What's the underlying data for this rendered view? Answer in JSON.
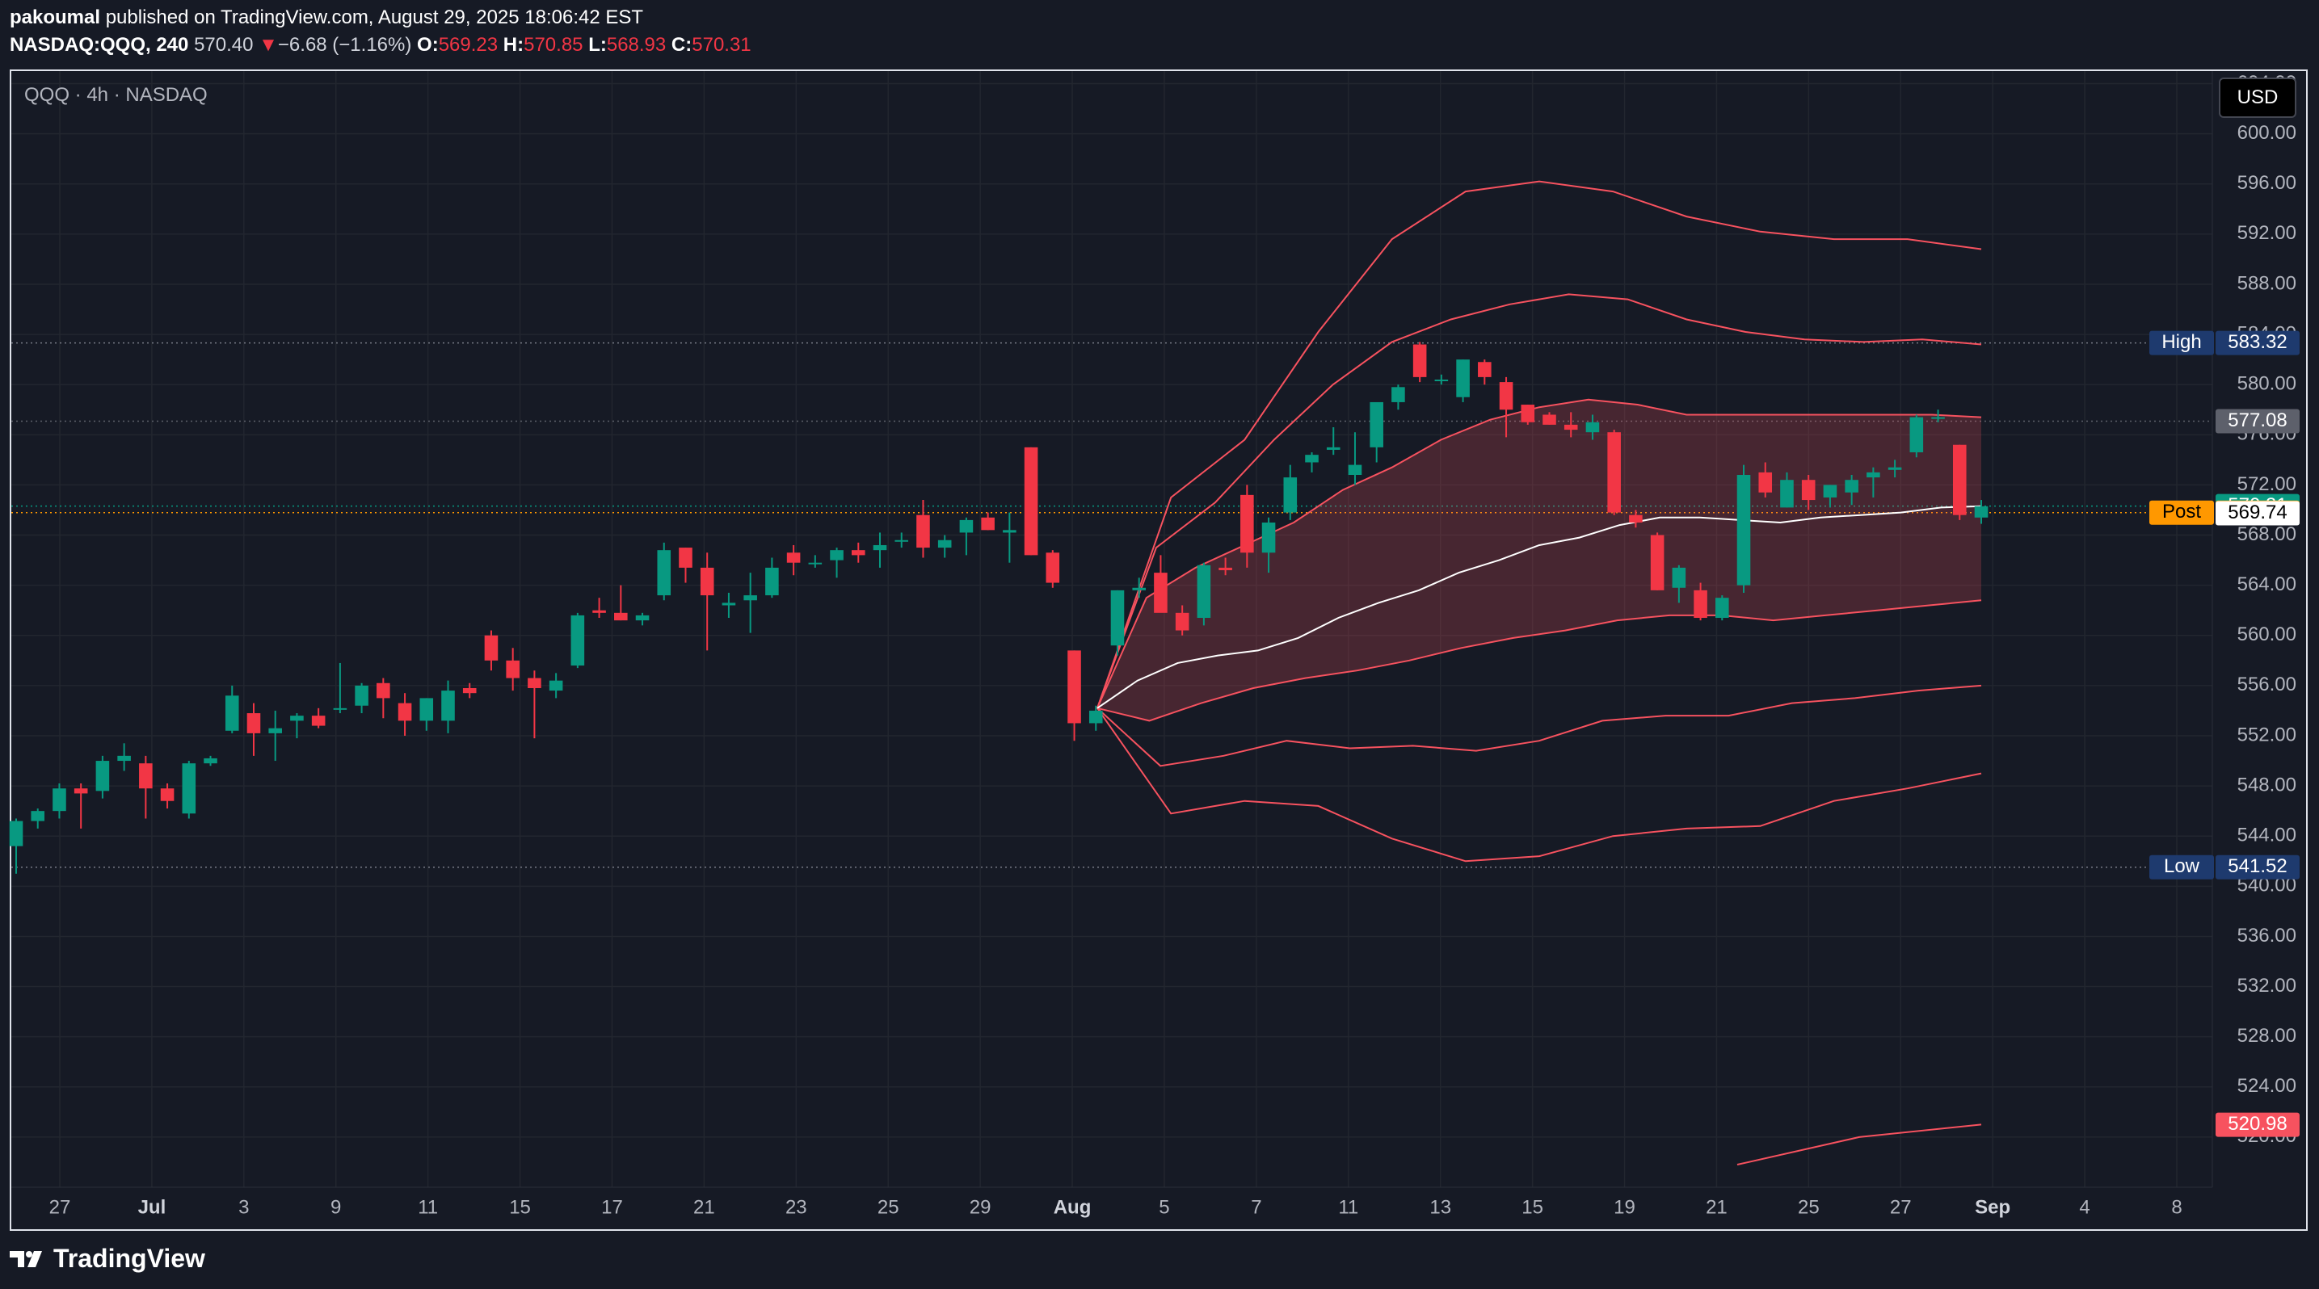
{
  "header": {
    "publisher": "pakoumal",
    "published_text": "published on TradingView.com, August 29, 2025 18:06:42 EST",
    "symbol_line": "NASDAQ:QQQ, 240",
    "last": "570.40",
    "change_arrow": "▼",
    "change": "−6.68 (−1.16%)",
    "o_label": "O:",
    "o": "569.23",
    "h_label": "H:",
    "h": "570.85",
    "l_label": "L:",
    "l": "568.93",
    "c_label": "C:",
    "c": "570.31"
  },
  "legend": {
    "symbol_desc": "QQQ · 4h · NASDAQ"
  },
  "currency_button": "USD",
  "brand": "TradingView",
  "colors": {
    "up": "#089981",
    "down": "#f23645",
    "band": "#f7525f",
    "vwap": "#ffffff",
    "post": "#ff9800"
  },
  "chart_data": {
    "type": "candlestick",
    "symbol": "QQQ",
    "interval": "4h",
    "ylim": [
      516,
      605
    ],
    "y_ticks": [
      "520.00",
      "524.00",
      "528.00",
      "532.00",
      "536.00",
      "540.00",
      "544.00",
      "548.00",
      "552.00",
      "556.00",
      "560.00",
      "564.00",
      "568.00",
      "572.00",
      "576.00",
      "580.00",
      "584.00",
      "588.00",
      "592.00",
      "596.00",
      "600.00",
      "604.00"
    ],
    "x_ticks": [
      {
        "label": "27",
        "bold": false
      },
      {
        "label": "Jul",
        "bold": true
      },
      {
        "label": "3",
        "bold": false
      },
      {
        "label": "9",
        "bold": false
      },
      {
        "label": "11",
        "bold": false
      },
      {
        "label": "15",
        "bold": false
      },
      {
        "label": "17",
        "bold": false
      },
      {
        "label": "21",
        "bold": false
      },
      {
        "label": "23",
        "bold": false
      },
      {
        "label": "25",
        "bold": false
      },
      {
        "label": "29",
        "bold": false
      },
      {
        "label": "Aug",
        "bold": true
      },
      {
        "label": "5",
        "bold": false
      },
      {
        "label": "7",
        "bold": false
      },
      {
        "label": "11",
        "bold": false
      },
      {
        "label": "13",
        "bold": false
      },
      {
        "label": "15",
        "bold": false
      },
      {
        "label": "19",
        "bold": false
      },
      {
        "label": "21",
        "bold": false
      },
      {
        "label": "25",
        "bold": false
      },
      {
        "label": "27",
        "bold": false
      },
      {
        "label": "Sep",
        "bold": true
      },
      {
        "label": "4",
        "bold": false
      },
      {
        "label": "8",
        "bold": false
      }
    ],
    "candles": [
      [
        543.2,
        545.4,
        541.0,
        545.2
      ],
      [
        545.2,
        546.2,
        544.6,
        546.0
      ],
      [
        546.0,
        548.2,
        545.4,
        547.8
      ],
      [
        547.8,
        548.2,
        544.6,
        547.4
      ],
      [
        547.6,
        550.4,
        547.0,
        550.0
      ],
      [
        550.0,
        551.4,
        549.2,
        550.4
      ],
      [
        549.8,
        550.4,
        545.4,
        547.8
      ],
      [
        547.8,
        548.2,
        546.2,
        546.8
      ],
      [
        545.8,
        550.0,
        545.4,
        549.8
      ],
      [
        549.8,
        550.4,
        549.6,
        550.2
      ],
      [
        552.4,
        556.0,
        552.2,
        555.2
      ],
      [
        553.8,
        554.6,
        550.4,
        552.2
      ],
      [
        552.2,
        554.0,
        550.0,
        552.6
      ],
      [
        553.2,
        553.8,
        551.8,
        553.6
      ],
      [
        553.6,
        554.2,
        552.6,
        552.8
      ],
      [
        554.2,
        557.8,
        553.8,
        554.2
      ],
      [
        554.4,
        556.2,
        553.8,
        556.0
      ],
      [
        556.2,
        556.6,
        553.4,
        555.0
      ],
      [
        554.6,
        555.4,
        552.0,
        553.2
      ],
      [
        553.2,
        555.0,
        552.4,
        555.0
      ],
      [
        553.2,
        556.4,
        552.2,
        555.6
      ],
      [
        555.8,
        556.2,
        555.0,
        555.4
      ],
      [
        560.0,
        560.4,
        557.2,
        558.0
      ],
      [
        558.0,
        559.0,
        555.6,
        556.6
      ],
      [
        556.6,
        557.2,
        551.8,
        555.8
      ],
      [
        555.6,
        557.0,
        555.0,
        556.4
      ],
      [
        557.6,
        561.8,
        557.4,
        561.6
      ],
      [
        562.0,
        563.0,
        561.4,
        561.8
      ],
      [
        561.8,
        564.0,
        561.2,
        561.2
      ],
      [
        561.2,
        561.8,
        560.8,
        561.6
      ],
      [
        563.2,
        567.4,
        562.8,
        566.8
      ],
      [
        567.0,
        567.0,
        564.2,
        565.4
      ],
      [
        565.4,
        566.6,
        558.8,
        563.2
      ],
      [
        562.4,
        563.4,
        561.4,
        562.6
      ],
      [
        562.8,
        565.0,
        560.2,
        563.2
      ],
      [
        563.2,
        566.2,
        563.0,
        565.4
      ],
      [
        566.6,
        567.2,
        564.8,
        565.8
      ],
      [
        565.8,
        566.4,
        565.4,
        565.8
      ],
      [
        566.0,
        567.0,
        564.6,
        566.8
      ],
      [
        566.8,
        567.4,
        565.8,
        566.4
      ],
      [
        566.8,
        568.2,
        565.4,
        567.2
      ],
      [
        567.6,
        568.2,
        567.0,
        567.6
      ],
      [
        569.6,
        570.8,
        566.2,
        567.0
      ],
      [
        567.0,
        568.0,
        566.2,
        567.6
      ],
      [
        568.2,
        569.4,
        566.4,
        569.2
      ],
      [
        569.4,
        569.8,
        568.4,
        568.4
      ],
      [
        568.2,
        569.8,
        565.8,
        568.4
      ],
      [
        575.0,
        575.0,
        566.4,
        566.4
      ],
      [
        566.6,
        566.8,
        563.8,
        564.2
      ],
      [
        558.8,
        558.8,
        551.6,
        553.0
      ],
      [
        553.0,
        554.4,
        552.4,
        554.0
      ],
      [
        559.2,
        563.6,
        558.4,
        563.6
      ],
      [
        563.6,
        564.6,
        563.0,
        563.8
      ],
      [
        565.0,
        566.4,
        562.0,
        561.8
      ],
      [
        561.8,
        562.4,
        560.0,
        560.4
      ],
      [
        561.4,
        565.8,
        560.8,
        565.6
      ],
      [
        565.4,
        566.2,
        564.8,
        565.2
      ],
      [
        571.2,
        572.0,
        565.4,
        566.6
      ],
      [
        566.6,
        569.4,
        565.0,
        569.0
      ],
      [
        569.8,
        573.6,
        569.2,
        572.6
      ],
      [
        573.8,
        574.6,
        573.0,
        574.4
      ],
      [
        574.8,
        576.6,
        574.4,
        575.0
      ],
      [
        572.8,
        576.2,
        572.0,
        573.6
      ],
      [
        575.0,
        578.2,
        573.8,
        578.6
      ],
      [
        578.6,
        580.0,
        578.0,
        579.8
      ],
      [
        583.2,
        583.4,
        580.2,
        580.6
      ],
      [
        580.4,
        580.8,
        580.0,
        580.4
      ],
      [
        579.0,
        582.0,
        578.6,
        582.0
      ],
      [
        581.8,
        582.0,
        580.0,
        580.6
      ],
      [
        580.2,
        580.6,
        575.8,
        578.0
      ],
      [
        578.4,
        578.4,
        576.8,
        577.0
      ],
      [
        577.6,
        577.8,
        576.8,
        576.8
      ],
      [
        576.8,
        577.8,
        575.8,
        576.4
      ],
      [
        576.2,
        577.6,
        575.6,
        577.0
      ],
      [
        576.2,
        576.4,
        569.6,
        569.8
      ],
      [
        569.6,
        570.0,
        568.6,
        569.0
      ],
      [
        568.0,
        568.2,
        563.6,
        563.6
      ],
      [
        563.8,
        565.6,
        562.6,
        565.4
      ],
      [
        563.6,
        564.2,
        561.2,
        561.4
      ],
      [
        561.4,
        563.2,
        561.2,
        563.0
      ],
      [
        564.0,
        573.6,
        563.4,
        572.8
      ],
      [
        573.0,
        573.8,
        571.0,
        571.4
      ],
      [
        570.2,
        573.0,
        570.2,
        572.4
      ],
      [
        572.4,
        572.8,
        570.0,
        570.8
      ],
      [
        571.0,
        572.0,
        570.2,
        572.0
      ],
      [
        571.4,
        572.8,
        570.4,
        572.4
      ],
      [
        572.6,
        573.4,
        571.0,
        573.0
      ],
      [
        573.2,
        574.0,
        572.6,
        573.4
      ],
      [
        574.6,
        577.6,
        574.2,
        577.4
      ],
      [
        577.4,
        578.0,
        577.0,
        577.4
      ],
      [
        575.2,
        575.2,
        569.2,
        569.6
      ],
      [
        569.4,
        570.8,
        568.9,
        570.3
      ]
    ],
    "vwap_bands": {
      "vwap": [
        554.2,
        556.4,
        557.8,
        558.4,
        558.8,
        559.8,
        561.4,
        562.6,
        563.6,
        565.0,
        566.0,
        567.2,
        567.8,
        568.8,
        569.4,
        569.4,
        569.2,
        569.0,
        569.4,
        569.6,
        569.8,
        570.2,
        570.3
      ],
      "upper1": [
        554.2,
        563.0,
        565.4,
        567.2,
        569.0,
        571.6,
        573.4,
        575.6,
        577.2,
        578.2,
        578.8,
        578.4,
        577.6,
        577.6,
        577.6,
        577.6,
        577.6,
        577.6,
        577.4
      ],
      "lower1": [
        554.2,
        553.2,
        554.6,
        555.8,
        556.6,
        557.2,
        558.0,
        559.0,
        559.8,
        560.4,
        561.2,
        561.6,
        561.6,
        561.2,
        561.6,
        562.0,
        562.4,
        562.8
      ],
      "upper2": [
        554.2,
        567.0,
        570.6,
        575.6,
        580.0,
        583.4,
        585.2,
        586.4,
        587.2,
        586.8,
        585.2,
        584.2,
        583.6,
        583.4,
        583.6,
        583.2
      ],
      "lower2": [
        554.2,
        549.6,
        550.4,
        551.6,
        551.0,
        551.2,
        550.8,
        551.6,
        553.2,
        553.6,
        553.6,
        554.6,
        555.0,
        555.6,
        556.0
      ],
      "upper3": [
        554.2,
        571.0,
        575.6,
        584.2,
        591.6,
        595.4,
        596.2,
        595.4,
        593.4,
        592.2,
        591.6,
        591.6,
        590.8
      ],
      "lower3": [
        554.2,
        545.8,
        546.8,
        546.4,
        543.8,
        542.0,
        542.4,
        544.0,
        544.6,
        544.8,
        546.8,
        547.8,
        549.0
      ]
    },
    "band_lower_bottom": [
      517.8,
      520.0,
      521.0
    ],
    "labels": {
      "high_label": "High",
      "high": "583.32",
      "last_close": "577.08",
      "current": "570.31",
      "post_label": "Post",
      "post": "569.79",
      "price_line": "569.74",
      "low_label": "Low",
      "low": "541.52",
      "bottom_band": "520.98"
    }
  }
}
